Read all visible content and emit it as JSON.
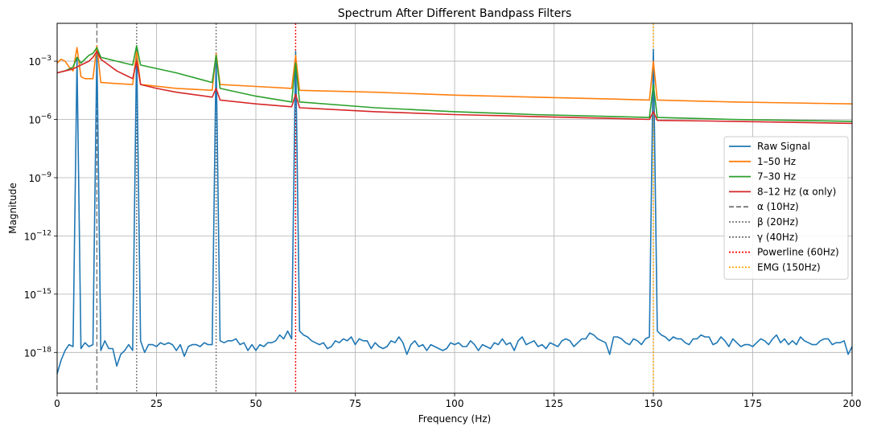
{
  "chart_data": {
    "type": "line",
    "title": "Spectrum After Different Bandpass Filters",
    "xlabel": "Frequency (Hz)",
    "ylabel": "Magnitude",
    "xlim": [
      0,
      200
    ],
    "ylim_log10": [
      -20.1,
      -1.05
    ],
    "yscale": "log",
    "grid": true,
    "legend_position": "center-right",
    "x_ticks": [
      {
        "value": 0,
        "label": "0"
      },
      {
        "value": 25,
        "label": "25"
      },
      {
        "value": 50,
        "label": "50"
      },
      {
        "value": 75,
        "label": "75"
      },
      {
        "value": 100,
        "label": "100"
      },
      {
        "value": 125,
        "label": "125"
      },
      {
        "value": 150,
        "label": "150"
      },
      {
        "value": 175,
        "label": "175"
      },
      {
        "value": 200,
        "label": "200"
      }
    ],
    "y_ticks": [
      {
        "exp": -3,
        "base": "10",
        "sup": "−3"
      },
      {
        "exp": -6,
        "base": "10",
        "sup": "−6"
      },
      {
        "exp": -9,
        "base": "10",
        "sup": "−9"
      },
      {
        "exp": -12,
        "base": "10",
        "sup": "−12"
      },
      {
        "exp": -15,
        "base": "10",
        "sup": "−15"
      },
      {
        "exp": -18,
        "base": "10",
        "sup": "−18"
      }
    ],
    "series": [
      {
        "name": "Raw Signal",
        "color": "#1f77b4",
        "points": [
          [
            0,
            -19.1
          ],
          [
            1,
            -18.4
          ],
          [
            2,
            -17.9
          ],
          [
            3,
            -17.6
          ],
          [
            4,
            -17.7
          ],
          [
            5,
            -2.9
          ],
          [
            6,
            -17.8
          ],
          [
            7,
            -17.5
          ],
          [
            8,
            -17.7
          ],
          [
            9,
            -17.6
          ],
          [
            10,
            -2.4
          ],
          [
            11,
            -17.9
          ],
          [
            12,
            -17.4
          ],
          [
            13,
            -17.8
          ],
          [
            14,
            -17.8
          ],
          [
            15,
            -18.7
          ],
          [
            16,
            -18.1
          ],
          [
            17,
            -17.9
          ],
          [
            18,
            -17.6
          ],
          [
            19,
            -17.9
          ],
          [
            20,
            -2.3
          ],
          [
            21,
            -17.4
          ],
          [
            22,
            -18.0
          ],
          [
            23,
            -17.6
          ],
          [
            24,
            -17.6
          ],
          [
            25,
            -17.7
          ],
          [
            26,
            -17.5
          ],
          [
            27,
            -17.6
          ],
          [
            28,
            -17.5
          ],
          [
            29,
            -17.6
          ],
          [
            30,
            -17.9
          ],
          [
            31,
            -17.6
          ],
          [
            32,
            -18.2
          ],
          [
            33,
            -17.7
          ],
          [
            34,
            -17.6
          ],
          [
            35,
            -17.6
          ],
          [
            36,
            -17.7
          ],
          [
            37,
            -17.5
          ],
          [
            38,
            -17.6
          ],
          [
            39,
            -17.6
          ],
          [
            40,
            -2.7
          ],
          [
            41,
            -17.4
          ],
          [
            42,
            -17.5
          ],
          [
            43,
            -17.4
          ],
          [
            44,
            -17.4
          ],
          [
            45,
            -17.3
          ],
          [
            46,
            -17.6
          ],
          [
            47,
            -17.5
          ],
          [
            48,
            -17.9
          ],
          [
            49,
            -17.6
          ],
          [
            50,
            -17.9
          ],
          [
            51,
            -17.6
          ],
          [
            52,
            -17.7
          ],
          [
            53,
            -17.5
          ],
          [
            54,
            -17.5
          ],
          [
            55,
            -17.4
          ],
          [
            56,
            -17.1
          ],
          [
            57,
            -17.3
          ],
          [
            58,
            -16.9
          ],
          [
            59,
            -17.3
          ],
          [
            60,
            -2.5
          ],
          [
            61,
            -16.9
          ],
          [
            62,
            -17.1
          ],
          [
            63,
            -17.2
          ],
          [
            64,
            -17.4
          ],
          [
            65,
            -17.5
          ],
          [
            66,
            -17.6
          ],
          [
            67,
            -17.5
          ],
          [
            68,
            -17.8
          ],
          [
            69,
            -17.7
          ],
          [
            70,
            -17.4
          ],
          [
            71,
            -17.5
          ],
          [
            72,
            -17.3
          ],
          [
            73,
            -17.4
          ],
          [
            74,
            -17.2
          ],
          [
            75,
            -17.6
          ],
          [
            76,
            -17.3
          ],
          [
            77,
            -17.4
          ],
          [
            78,
            -17.4
          ],
          [
            79,
            -17.8
          ],
          [
            80,
            -17.5
          ],
          [
            81,
            -17.7
          ],
          [
            82,
            -17.8
          ],
          [
            83,
            -17.7
          ],
          [
            84,
            -17.4
          ],
          [
            85,
            -17.5
          ],
          [
            86,
            -17.2
          ],
          [
            87,
            -17.5
          ],
          [
            88,
            -18.1
          ],
          [
            89,
            -17.6
          ],
          [
            90,
            -17.4
          ],
          [
            91,
            -17.7
          ],
          [
            92,
            -17.6
          ],
          [
            93,
            -17.9
          ],
          [
            94,
            -17.6
          ],
          [
            95,
            -17.7
          ],
          [
            96,
            -17.8
          ],
          [
            97,
            -17.9
          ],
          [
            98,
            -17.8
          ],
          [
            99,
            -17.5
          ],
          [
            100,
            -17.6
          ],
          [
            101,
            -17.5
          ],
          [
            102,
            -17.7
          ],
          [
            103,
            -17.7
          ],
          [
            104,
            -17.4
          ],
          [
            105,
            -17.6
          ],
          [
            106,
            -17.9
          ],
          [
            107,
            -17.6
          ],
          [
            108,
            -17.7
          ],
          [
            109,
            -17.8
          ],
          [
            110,
            -17.5
          ],
          [
            111,
            -17.6
          ],
          [
            112,
            -17.3
          ],
          [
            113,
            -17.6
          ],
          [
            114,
            -17.5
          ],
          [
            115,
            -17.9
          ],
          [
            116,
            -17.4
          ],
          [
            117,
            -17.2
          ],
          [
            118,
            -17.6
          ],
          [
            119,
            -17.5
          ],
          [
            120,
            -17.4
          ],
          [
            121,
            -17.7
          ],
          [
            122,
            -17.6
          ],
          [
            123,
            -17.8
          ],
          [
            124,
            -17.5
          ],
          [
            125,
            -17.6
          ],
          [
            126,
            -17.7
          ],
          [
            127,
            -17.4
          ],
          [
            128,
            -17.3
          ],
          [
            129,
            -17.4
          ],
          [
            130,
            -17.7
          ],
          [
            131,
            -17.5
          ],
          [
            132,
            -17.3
          ],
          [
            133,
            -17.3
          ],
          [
            134,
            -17.0
          ],
          [
            135,
            -17.1
          ],
          [
            136,
            -17.3
          ],
          [
            137,
            -17.4
          ],
          [
            138,
            -17.5
          ],
          [
            139,
            -18.1
          ],
          [
            140,
            -17.2
          ],
          [
            141,
            -17.2
          ],
          [
            142,
            -17.3
          ],
          [
            143,
            -17.5
          ],
          [
            144,
            -17.6
          ],
          [
            145,
            -17.3
          ],
          [
            146,
            -17.4
          ],
          [
            147,
            -17.6
          ],
          [
            148,
            -17.3
          ],
          [
            149,
            -17.2
          ],
          [
            150,
            -2.4
          ],
          [
            151,
            -16.9
          ],
          [
            152,
            -17.1
          ],
          [
            153,
            -17.2
          ],
          [
            154,
            -17.4
          ],
          [
            155,
            -17.2
          ],
          [
            156,
            -17.3
          ],
          [
            157,
            -17.3
          ],
          [
            158,
            -17.5
          ],
          [
            159,
            -17.6
          ],
          [
            160,
            -17.3
          ],
          [
            161,
            -17.3
          ],
          [
            162,
            -17.1
          ],
          [
            163,
            -17.2
          ],
          [
            164,
            -17.2
          ],
          [
            165,
            -17.6
          ],
          [
            166,
            -17.5
          ],
          [
            167,
            -17.2
          ],
          [
            168,
            -17.4
          ],
          [
            169,
            -17.7
          ],
          [
            170,
            -17.3
          ],
          [
            171,
            -17.5
          ],
          [
            172,
            -17.7
          ],
          [
            173,
            -17.6
          ],
          [
            174,
            -17.6
          ],
          [
            175,
            -17.7
          ],
          [
            176,
            -17.5
          ],
          [
            177,
            -17.3
          ],
          [
            178,
            -17.4
          ],
          [
            179,
            -17.6
          ],
          [
            180,
            -17.3
          ],
          [
            181,
            -17.1
          ],
          [
            182,
            -17.5
          ],
          [
            183,
            -17.3
          ],
          [
            184,
            -17.6
          ],
          [
            185,
            -17.4
          ],
          [
            186,
            -17.6
          ],
          [
            187,
            -17.2
          ],
          [
            188,
            -17.4
          ],
          [
            189,
            -17.5
          ],
          [
            190,
            -17.6
          ],
          [
            191,
            -17.6
          ],
          [
            192,
            -17.4
          ],
          [
            193,
            -17.3
          ],
          [
            194,
            -17.3
          ],
          [
            195,
            -17.6
          ],
          [
            196,
            -17.5
          ],
          [
            197,
            -17.5
          ],
          [
            198,
            -17.4
          ],
          [
            199,
            -18.1
          ],
          [
            200,
            -17.7
          ]
        ]
      },
      {
        "name": "1–50 Hz",
        "color": "#ff7f0e",
        "points": [
          [
            0,
            -3.1
          ],
          [
            1,
            -2.9
          ],
          [
            2,
            -3.0
          ],
          [
            3,
            -3.3
          ],
          [
            4,
            -3.5
          ],
          [
            5,
            -2.3
          ],
          [
            6,
            -3.8
          ],
          [
            7,
            -3.9
          ],
          [
            8,
            -3.9
          ],
          [
            9,
            -3.9
          ],
          [
            10,
            -2.2
          ],
          [
            11,
            -4.1
          ],
          [
            15,
            -4.15
          ],
          [
            19,
            -4.2
          ],
          [
            20,
            -2.5
          ],
          [
            21,
            -4.2
          ],
          [
            30,
            -4.4
          ],
          [
            39,
            -4.5
          ],
          [
            40,
            -2.6
          ],
          [
            41,
            -4.2
          ],
          [
            50,
            -4.3
          ],
          [
            59,
            -4.4
          ],
          [
            60,
            -2.7
          ],
          [
            61,
            -4.5
          ],
          [
            80,
            -4.6
          ],
          [
            100,
            -4.75
          ],
          [
            120,
            -4.85
          ],
          [
            140,
            -4.95
          ],
          [
            149,
            -5.0
          ],
          [
            150,
            -3.0
          ],
          [
            151,
            -5.0
          ],
          [
            170,
            -5.1
          ],
          [
            185,
            -5.15
          ],
          [
            200,
            -5.2
          ]
        ]
      },
      {
        "name": "7–30 Hz",
        "color": "#2ca02c",
        "points": [
          [
            0,
            -3.6
          ],
          [
            2,
            -3.5
          ],
          [
            4,
            -3.3
          ],
          [
            5,
            -2.8
          ],
          [
            6,
            -3.1
          ],
          [
            8,
            -2.7
          ],
          [
            9,
            -2.6
          ],
          [
            10,
            -2.3
          ],
          [
            11,
            -2.8
          ],
          [
            15,
            -3.0
          ],
          [
            19,
            -3.2
          ],
          [
            20,
            -2.2
          ],
          [
            21,
            -3.2
          ],
          [
            30,
            -3.6
          ],
          [
            39,
            -4.1
          ],
          [
            40,
            -2.7
          ],
          [
            41,
            -4.4
          ],
          [
            50,
            -4.8
          ],
          [
            59,
            -5.1
          ],
          [
            60,
            -3.1
          ],
          [
            61,
            -5.1
          ],
          [
            80,
            -5.4
          ],
          [
            100,
            -5.6
          ],
          [
            120,
            -5.75
          ],
          [
            140,
            -5.85
          ],
          [
            149,
            -5.9
          ],
          [
            150,
            -4.2
          ],
          [
            151,
            -5.9
          ],
          [
            170,
            -6.0
          ],
          [
            200,
            -6.1
          ]
        ]
      },
      {
        "name": "8–12 Hz (α only)",
        "color": "#d62728",
        "points": [
          [
            0,
            -3.6
          ],
          [
            2,
            -3.5
          ],
          [
            4,
            -3.4
          ],
          [
            6,
            -3.2
          ],
          [
            8,
            -3.0
          ],
          [
            9,
            -2.8
          ],
          [
            10,
            -2.5
          ],
          [
            11,
            -2.9
          ],
          [
            13,
            -3.2
          ],
          [
            15,
            -3.5
          ],
          [
            17,
            -3.7
          ],
          [
            19,
            -3.9
          ],
          [
            20,
            -3.0
          ],
          [
            21,
            -4.2
          ],
          [
            25,
            -4.4
          ],
          [
            30,
            -4.6
          ],
          [
            39,
            -4.85
          ],
          [
            40,
            -4.4
          ],
          [
            41,
            -5.0
          ],
          [
            50,
            -5.2
          ],
          [
            59,
            -5.35
          ],
          [
            60,
            -4.7
          ],
          [
            61,
            -5.4
          ],
          [
            80,
            -5.6
          ],
          [
            100,
            -5.75
          ],
          [
            120,
            -5.85
          ],
          [
            140,
            -5.95
          ],
          [
            149,
            -6.0
          ],
          [
            150,
            -5.6
          ],
          [
            151,
            -6.05
          ],
          [
            170,
            -6.1
          ],
          [
            200,
            -6.2
          ]
        ]
      }
    ],
    "reference_lines": [
      {
        "name": "α (10Hz)",
        "x": 10,
        "color": "#777777",
        "style": "dashed"
      },
      {
        "name": "β (20Hz)",
        "x": 20,
        "color": "#777777",
        "style": "dotted"
      },
      {
        "name": "γ (40Hz)",
        "x": 40,
        "color": "#777777",
        "style": "dotted"
      },
      {
        "name": "Powerline (60Hz)",
        "x": 60,
        "color": "#ff0000",
        "style": "dotted"
      },
      {
        "name": "EMG (150Hz)",
        "x": 150,
        "color": "#ffa500",
        "style": "dotted"
      }
    ]
  }
}
